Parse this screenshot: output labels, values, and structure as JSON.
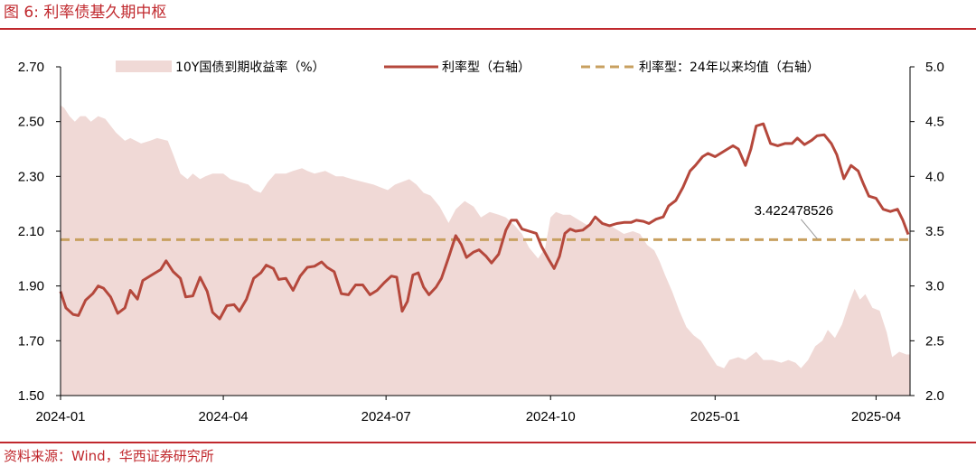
{
  "figure": {
    "title": "图 6:  利率债基久期中枢",
    "source": "资料来源：Wind，华西证券研究所"
  },
  "chart_data": {
    "type": "area+line",
    "xlim": [
      "2024-01-01",
      "2025-04-20"
    ],
    "x_ticks": [
      "2024-01",
      "2024-04",
      "2024-07",
      "2024-10",
      "2025-01",
      "2025-04"
    ],
    "y_left": {
      "lim": [
        1.5,
        2.7
      ],
      "ticks": [
        "1.50",
        "1.70",
        "1.90",
        "2.10",
        "2.30",
        "2.50",
        "2.70"
      ]
    },
    "y_right": {
      "lim": [
        2.0,
        5.0
      ],
      "ticks": [
        "2.0",
        "2.5",
        "3.0",
        "3.5",
        "4.0",
        "4.5",
        "5.0"
      ]
    },
    "grid": false,
    "legend_position": "top",
    "series": [
      {
        "name": "10Y国债到期收益率（%）",
        "type": "area",
        "axis": "left",
        "color": "#f0d9d6",
        "points": [
          [
            "2024-01-01",
            2.56
          ],
          [
            "2024-01-03",
            2.55
          ],
          [
            "2024-01-06",
            2.52
          ],
          [
            "2024-01-09",
            2.5
          ],
          [
            "2024-01-12",
            2.52
          ],
          [
            "2024-01-15",
            2.52
          ],
          [
            "2024-01-18",
            2.5
          ],
          [
            "2024-01-22",
            2.52
          ],
          [
            "2024-01-26",
            2.51
          ],
          [
            "2024-02-01",
            2.46
          ],
          [
            "2024-02-06",
            2.43
          ],
          [
            "2024-02-09",
            2.44
          ],
          [
            "2024-02-15",
            2.42
          ],
          [
            "2024-02-20",
            2.43
          ],
          [
            "2024-02-24",
            2.44
          ],
          [
            "2024-03-01",
            2.43
          ],
          [
            "2024-03-04",
            2.38
          ],
          [
            "2024-03-08",
            2.31
          ],
          [
            "2024-03-12",
            2.29
          ],
          [
            "2024-03-15",
            2.31
          ],
          [
            "2024-03-19",
            2.29
          ],
          [
            "2024-03-22",
            2.3
          ],
          [
            "2024-03-26",
            2.31
          ],
          [
            "2024-04-01",
            2.31
          ],
          [
            "2024-04-05",
            2.29
          ],
          [
            "2024-04-10",
            2.28
          ],
          [
            "2024-04-15",
            2.27
          ],
          [
            "2024-04-18",
            2.25
          ],
          [
            "2024-04-22",
            2.24
          ],
          [
            "2024-04-26",
            2.28
          ],
          [
            "2024-04-30",
            2.31
          ],
          [
            "2024-05-06",
            2.31
          ],
          [
            "2024-05-10",
            2.32
          ],
          [
            "2024-05-15",
            2.33
          ],
          [
            "2024-05-18",
            2.32
          ],
          [
            "2024-05-22",
            2.31
          ],
          [
            "2024-05-28",
            2.32
          ],
          [
            "2024-06-03",
            2.3
          ],
          [
            "2024-06-07",
            2.3
          ],
          [
            "2024-06-12",
            2.29
          ],
          [
            "2024-06-18",
            2.28
          ],
          [
            "2024-06-24",
            2.27
          ],
          [
            "2024-06-28",
            2.26
          ],
          [
            "2024-07-02",
            2.25
          ],
          [
            "2024-07-06",
            2.27
          ],
          [
            "2024-07-10",
            2.28
          ],
          [
            "2024-07-14",
            2.29
          ],
          [
            "2024-07-18",
            2.27
          ],
          [
            "2024-07-22",
            2.24
          ],
          [
            "2024-07-26",
            2.23
          ],
          [
            "2024-07-31",
            2.19
          ],
          [
            "2024-08-05",
            2.13
          ],
          [
            "2024-08-09",
            2.18
          ],
          [
            "2024-08-14",
            2.21
          ],
          [
            "2024-08-19",
            2.19
          ],
          [
            "2024-08-23",
            2.15
          ],
          [
            "2024-08-28",
            2.17
          ],
          [
            "2024-09-02",
            2.16
          ],
          [
            "2024-09-06",
            2.15
          ],
          [
            "2024-09-11",
            2.12
          ],
          [
            "2024-09-15",
            2.09
          ],
          [
            "2024-09-19",
            2.04
          ],
          [
            "2024-09-24",
            2.0
          ],
          [
            "2024-09-28",
            2.04
          ],
          [
            "2024-10-01",
            2.15
          ],
          [
            "2024-10-04",
            2.17
          ],
          [
            "2024-10-08",
            2.16
          ],
          [
            "2024-10-12",
            2.16
          ],
          [
            "2024-10-17",
            2.14
          ],
          [
            "2024-10-22",
            2.12
          ],
          [
            "2024-10-27",
            2.14
          ],
          [
            "2024-11-01",
            2.13
          ],
          [
            "2024-11-06",
            2.11
          ],
          [
            "2024-11-11",
            2.09
          ],
          [
            "2024-11-16",
            2.1
          ],
          [
            "2024-11-20",
            2.09
          ],
          [
            "2024-11-24",
            2.05
          ],
          [
            "2024-11-28",
            2.03
          ],
          [
            "2024-12-01",
            1.99
          ],
          [
            "2024-12-04",
            1.94
          ],
          [
            "2024-12-08",
            1.88
          ],
          [
            "2024-12-12",
            1.81
          ],
          [
            "2024-12-16",
            1.75
          ],
          [
            "2024-12-20",
            1.72
          ],
          [
            "2024-12-24",
            1.7
          ],
          [
            "2024-12-28",
            1.66
          ],
          [
            "2025-01-02",
            1.61
          ],
          [
            "2025-01-06",
            1.6
          ],
          [
            "2025-01-09",
            1.63
          ],
          [
            "2025-01-14",
            1.64
          ],
          [
            "2025-01-18",
            1.63
          ],
          [
            "2025-01-24",
            1.66
          ],
          [
            "2025-01-28",
            1.63
          ],
          [
            "2025-02-02",
            1.63
          ],
          [
            "2025-02-07",
            1.62
          ],
          [
            "2025-02-11",
            1.63
          ],
          [
            "2025-02-15",
            1.62
          ],
          [
            "2025-02-18",
            1.6
          ],
          [
            "2025-02-22",
            1.63
          ],
          [
            "2025-02-26",
            1.68
          ],
          [
            "2025-03-02",
            1.7
          ],
          [
            "2025-03-05",
            1.74
          ],
          [
            "2025-03-09",
            1.71
          ],
          [
            "2025-03-13",
            1.76
          ],
          [
            "2025-03-17",
            1.84
          ],
          [
            "2025-03-20",
            1.89
          ],
          [
            "2025-03-23",
            1.85
          ],
          [
            "2025-03-26",
            1.87
          ],
          [
            "2025-03-30",
            1.82
          ],
          [
            "2025-04-03",
            1.81
          ],
          [
            "2025-04-07",
            1.73
          ],
          [
            "2025-04-10",
            1.64
          ],
          [
            "2025-04-14",
            1.66
          ],
          [
            "2025-04-18",
            1.65
          ],
          [
            "2025-04-20",
            1.65
          ]
        ]
      },
      {
        "name": "利率型（右轴）",
        "type": "line",
        "axis": "right",
        "color": "#b5483c",
        "points": [
          [
            "2024-01-01",
            2.95
          ],
          [
            "2024-01-04",
            2.8
          ],
          [
            "2024-01-08",
            2.74
          ],
          [
            "2024-01-11",
            2.73
          ],
          [
            "2024-01-15",
            2.87
          ],
          [
            "2024-01-19",
            2.93
          ],
          [
            "2024-01-22",
            3.0
          ],
          [
            "2024-01-25",
            2.98
          ],
          [
            "2024-01-29",
            2.9
          ],
          [
            "2024-02-02",
            2.75
          ],
          [
            "2024-02-06",
            2.8
          ],
          [
            "2024-02-09",
            2.96
          ],
          [
            "2024-02-13",
            2.88
          ],
          [
            "2024-02-16",
            3.05
          ],
          [
            "2024-02-21",
            3.1
          ],
          [
            "2024-02-26",
            3.15
          ],
          [
            "2024-02-29",
            3.23
          ],
          [
            "2024-03-04",
            3.13
          ],
          [
            "2024-03-08",
            3.07
          ],
          [
            "2024-03-11",
            2.9
          ],
          [
            "2024-03-15",
            2.91
          ],
          [
            "2024-03-19",
            3.08
          ],
          [
            "2024-03-23",
            2.95
          ],
          [
            "2024-03-26",
            2.76
          ],
          [
            "2024-03-30",
            2.7
          ],
          [
            "2024-04-03",
            2.82
          ],
          [
            "2024-04-07",
            2.83
          ],
          [
            "2024-04-10",
            2.77
          ],
          [
            "2024-04-14",
            2.88
          ],
          [
            "2024-04-18",
            3.07
          ],
          [
            "2024-04-22",
            3.12
          ],
          [
            "2024-04-25",
            3.19
          ],
          [
            "2024-04-29",
            3.16
          ],
          [
            "2024-05-02",
            3.06
          ],
          [
            "2024-05-06",
            3.07
          ],
          [
            "2024-05-10",
            2.96
          ],
          [
            "2024-05-14",
            3.09
          ],
          [
            "2024-05-18",
            3.17
          ],
          [
            "2024-05-22",
            3.18
          ],
          [
            "2024-05-26",
            3.22
          ],
          [
            "2024-05-29",
            3.17
          ],
          [
            "2024-06-02",
            3.13
          ],
          [
            "2024-06-06",
            2.93
          ],
          [
            "2024-06-10",
            2.92
          ],
          [
            "2024-06-14",
            3.01
          ],
          [
            "2024-06-18",
            3.01
          ],
          [
            "2024-06-22",
            2.92
          ],
          [
            "2024-06-26",
            2.96
          ],
          [
            "2024-06-30",
            3.03
          ],
          [
            "2024-07-04",
            3.09
          ],
          [
            "2024-07-07",
            3.08
          ],
          [
            "2024-07-10",
            2.77
          ],
          [
            "2024-07-13",
            2.86
          ],
          [
            "2024-07-16",
            3.1
          ],
          [
            "2024-07-19",
            3.12
          ],
          [
            "2024-07-22",
            2.99
          ],
          [
            "2024-07-25",
            2.92
          ],
          [
            "2024-07-29",
            2.99
          ],
          [
            "2024-08-01",
            3.07
          ],
          [
            "2024-08-05",
            3.26
          ],
          [
            "2024-08-09",
            3.46
          ],
          [
            "2024-08-12",
            3.38
          ],
          [
            "2024-08-15",
            3.26
          ],
          [
            "2024-08-19",
            3.31
          ],
          [
            "2024-08-22",
            3.33
          ],
          [
            "2024-08-26",
            3.27
          ],
          [
            "2024-08-29",
            3.21
          ],
          [
            "2024-09-02",
            3.29
          ],
          [
            "2024-09-06",
            3.51
          ],
          [
            "2024-09-09",
            3.6
          ],
          [
            "2024-09-12",
            3.6
          ],
          [
            "2024-09-15",
            3.52
          ],
          [
            "2024-09-19",
            3.5
          ],
          [
            "2024-09-23",
            3.48
          ],
          [
            "2024-09-26",
            3.36
          ],
          [
            "2024-09-30",
            3.24
          ],
          [
            "2024-10-03",
            3.16
          ],
          [
            "2024-10-06",
            3.27
          ],
          [
            "2024-10-09",
            3.48
          ],
          [
            "2024-10-12",
            3.52
          ],
          [
            "2024-10-15",
            3.5
          ],
          [
            "2024-10-19",
            3.51
          ],
          [
            "2024-10-23",
            3.56
          ],
          [
            "2024-10-26",
            3.63
          ],
          [
            "2024-10-30",
            3.57
          ],
          [
            "2024-11-03",
            3.55
          ],
          [
            "2024-11-07",
            3.57
          ],
          [
            "2024-11-11",
            3.58
          ],
          [
            "2024-11-15",
            3.58
          ],
          [
            "2024-11-18",
            3.6
          ],
          [
            "2024-11-22",
            3.59
          ],
          [
            "2024-11-25",
            3.57
          ],
          [
            "2024-11-29",
            3.61
          ],
          [
            "2024-12-03",
            3.63
          ],
          [
            "2024-12-06",
            3.73
          ],
          [
            "2024-12-10",
            3.78
          ],
          [
            "2024-12-14",
            3.9
          ],
          [
            "2024-12-18",
            4.05
          ],
          [
            "2024-12-21",
            4.1
          ],
          [
            "2024-12-25",
            4.18
          ],
          [
            "2024-12-28",
            4.21
          ],
          [
            "2025-01-01",
            4.18
          ],
          [
            "2025-01-04",
            4.21
          ],
          [
            "2025-01-08",
            4.25
          ],
          [
            "2025-01-11",
            4.28
          ],
          [
            "2025-01-14",
            4.25
          ],
          [
            "2025-01-18",
            4.1
          ],
          [
            "2025-01-21",
            4.25
          ],
          [
            "2025-01-24",
            4.46
          ],
          [
            "2025-01-28",
            4.48
          ],
          [
            "2025-02-01",
            4.3
          ],
          [
            "2025-02-05",
            4.28
          ],
          [
            "2025-02-09",
            4.3
          ],
          [
            "2025-02-13",
            4.3
          ],
          [
            "2025-02-16",
            4.35
          ],
          [
            "2025-02-20",
            4.29
          ],
          [
            "2025-02-24",
            4.33
          ],
          [
            "2025-02-27",
            4.37
          ],
          [
            "2025-03-03",
            4.38
          ],
          [
            "2025-03-07",
            4.3
          ],
          [
            "2025-03-10",
            4.2
          ],
          [
            "2025-03-14",
            3.98
          ],
          [
            "2025-03-18",
            4.1
          ],
          [
            "2025-03-22",
            4.05
          ],
          [
            "2025-03-25",
            3.93
          ],
          [
            "2025-03-28",
            3.82
          ],
          [
            "2025-04-01",
            3.8
          ],
          [
            "2025-04-05",
            3.7
          ],
          [
            "2025-04-09",
            3.68
          ],
          [
            "2025-04-13",
            3.7
          ],
          [
            "2025-04-16",
            3.6
          ],
          [
            "2025-04-19",
            3.47
          ]
        ]
      },
      {
        "name": "利率型：24年以来均值（右轴）",
        "type": "dashed-line",
        "axis": "right",
        "color": "#c8a060",
        "value": 3.422478526
      }
    ],
    "annotations": [
      {
        "text": "3.422478526",
        "x": "2025-02-14",
        "y_right": 3.65
      }
    ]
  }
}
